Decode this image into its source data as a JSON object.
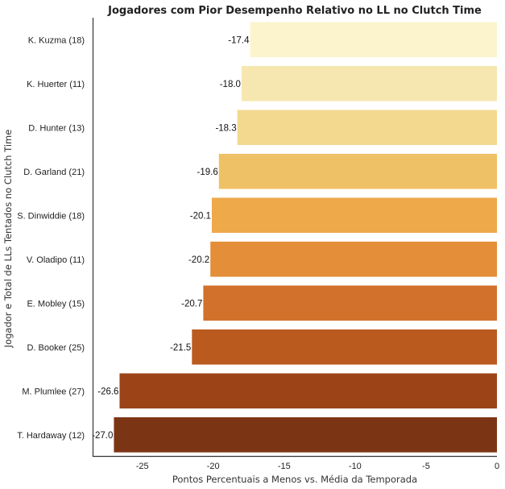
{
  "chart_data": {
    "type": "bar",
    "orientation": "horizontal",
    "title": "Jogadores com Pior Desempenho Relativo no LL no Clutch Time",
    "xlabel": "Pontos Percentuais a Menos vs. Média da Temporada",
    "ylabel": "Jogador e Total de LLs Tentados no Clutch Time",
    "categories": [
      "K. Kuzma (18)",
      "K. Huerter (11)",
      "D. Hunter (13)",
      "D. Garland (21)",
      "S. Dinwiddie (18)",
      "V. Oladipo (11)",
      "E. Mobley (15)",
      "D. Booker (25)",
      "M. Plumlee (27)",
      "T. Hardaway (12)"
    ],
    "values": [
      -17.4,
      -18.0,
      -18.3,
      -19.6,
      -20.1,
      -20.2,
      -20.7,
      -21.5,
      -26.6,
      -27.0
    ],
    "value_labels": [
      "-17.4",
      "-18.0",
      "-18.3",
      "-19.6",
      "-20.1",
      "-20.2",
      "-20.7",
      "-21.5",
      "-26.6",
      "-27.0"
    ],
    "colors": [
      "#fbf4cd",
      "#f6e7b0",
      "#f2d98f",
      "#efc166",
      "#eea94b",
      "#e48e39",
      "#d2712c",
      "#bb5a1f",
      "#9c4418",
      "#7c3514"
    ],
    "xlim": [
      -28.5,
      0
    ],
    "xticks": [
      -25,
      -20,
      -15,
      -10,
      -5,
      0
    ],
    "xtick_labels": [
      "-25",
      "-20",
      "-15",
      "-10",
      "-5",
      "0"
    ],
    "grid": false
  }
}
